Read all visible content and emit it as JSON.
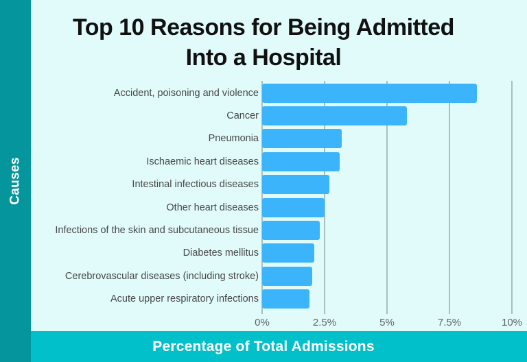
{
  "header": {
    "title_line1": "Top 10 Reasons for Being Admitted",
    "title_line2": "Into a Hospital"
  },
  "chart_data": {
    "type": "bar",
    "orientation": "horizontal",
    "title": "Top 10 Reasons for Being Admitted Into a Hospital",
    "xlabel": "Percentage of Total Admissions",
    "ylabel": "Causes",
    "categories": [
      "Accident, poisoning and violence",
      "Cancer",
      "Pneumonia",
      "Ischaemic heart diseases",
      "Intestinal infectious diseases",
      "Other heart diseases",
      "Infections of the skin and subcutaneous tissue",
      "Diabetes mellitus",
      "Cerebrovascular diseases (including stroke)",
      "Acute upper respiratory infections"
    ],
    "values": [
      8.6,
      5.8,
      3.2,
      3.1,
      2.7,
      2.5,
      2.3,
      2.1,
      2.0,
      1.9
    ],
    "xlim": [
      0,
      10
    ],
    "x_tick_values": [
      0,
      2.5,
      5,
      7.5,
      10
    ],
    "x_tick_labels": [
      "0%",
      "2.5%",
      "5%",
      "7.5%",
      "10%"
    ],
    "grid": "vertical-gridlines-on",
    "legend": "none"
  },
  "colors": {
    "background": "#e0fbfa",
    "side_band": "#05969d",
    "bottom_band": "#02c0c9",
    "bar": "#3cb4fc",
    "gridline": "#abbebf",
    "title_text": "#111111",
    "label_text": "#474747",
    "tick_text": "#5f6468",
    "band_text": "#ffffff"
  }
}
